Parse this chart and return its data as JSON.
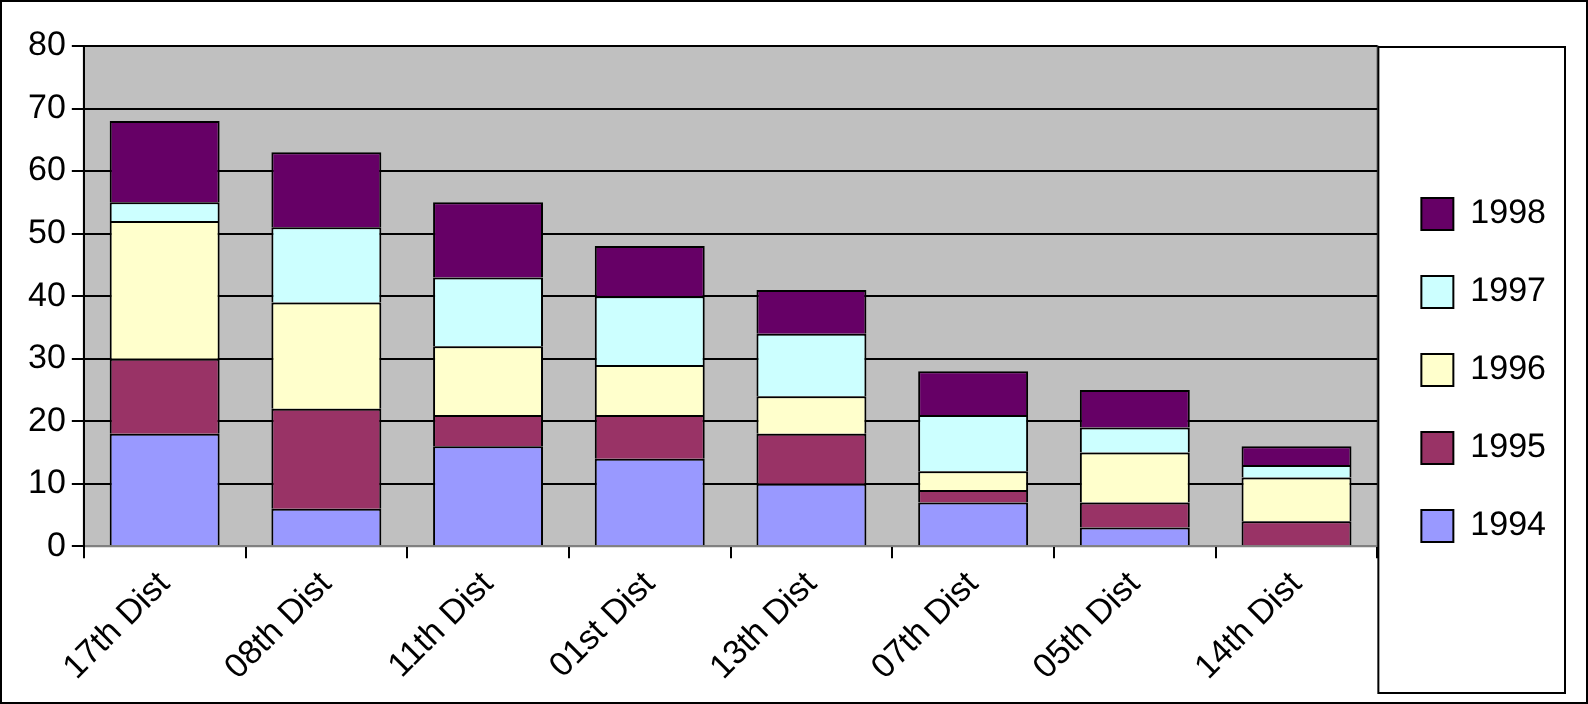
{
  "chart_data": {
    "type": "bar",
    "stacked": true,
    "categories": [
      "17th Dist",
      "08th Dist",
      "11th Dist",
      "01st Dist",
      "13th Dist",
      "07th Dist",
      "05th Dist",
      "14th Dist"
    ],
    "series": [
      {
        "name": "1994",
        "color": "#9999ff",
        "values": [
          18,
          6,
          16,
          14,
          10,
          7,
          3,
          0
        ]
      },
      {
        "name": "1995",
        "color": "#993366",
        "values": [
          12,
          16,
          5,
          7,
          8,
          2,
          4,
          4
        ]
      },
      {
        "name": "1996",
        "color": "#ffffcc",
        "values": [
          22,
          17,
          11,
          8,
          6,
          3,
          8,
          7
        ]
      },
      {
        "name": "1997",
        "color": "#ccffff",
        "values": [
          3,
          12,
          11,
          11,
          10,
          9,
          4,
          2
        ]
      },
      {
        "name": "1998",
        "color": "#660066",
        "values": [
          13,
          12,
          12,
          8,
          7,
          7,
          6,
          3
        ]
      }
    ],
    "ylim": [
      0,
      80
    ],
    "yticks": [
      0,
      10,
      20,
      30,
      40,
      50,
      60,
      70,
      80
    ],
    "grid": "y",
    "legend": "right"
  }
}
